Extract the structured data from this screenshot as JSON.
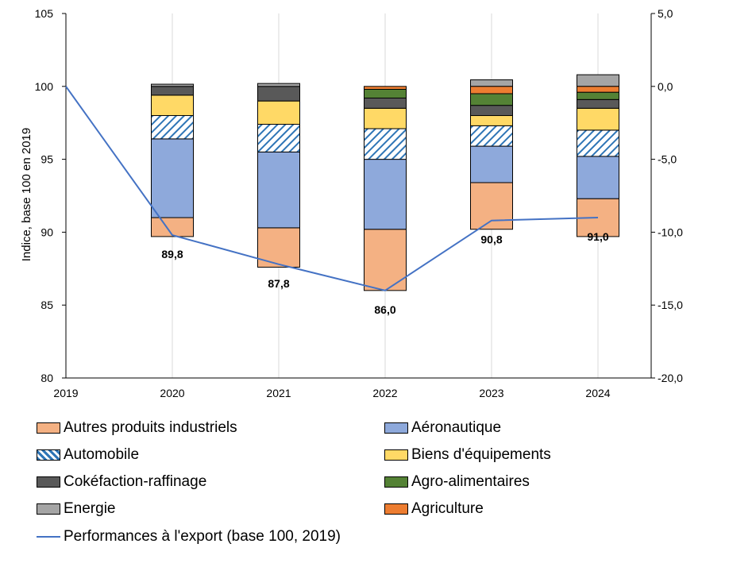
{
  "chart_data": {
    "type": "bar",
    "subtype": "stacked-bar-with-line",
    "categories": [
      "2019",
      "2020",
      "2021",
      "2022",
      "2023",
      "2024"
    ],
    "ylabel": "Indice, base 100 en 2019",
    "ylim": [
      80,
      105
    ],
    "yticks": [
      "80",
      "85",
      "90",
      "95",
      "100",
      "105"
    ],
    "y2lim": [
      -20,
      5
    ],
    "y2ticks": [
      "-20,0",
      "-15,0",
      "-10,0",
      "-5,0",
      "0,0",
      "5,0"
    ],
    "grid": "vertical",
    "series": [
      {
        "name": "Autres produits industriels",
        "color": "#F4B183",
        "pattern": "solid",
        "values": [
          null,
          [
            -10.3,
            -9.0
          ],
          [
            -12.4,
            -9.7
          ],
          [
            -14.0,
            -9.8
          ],
          [
            -9.8,
            -6.6
          ],
          [
            -10.3,
            -7.7
          ]
        ]
      },
      {
        "name": "Aéronautique",
        "color": "#8EA9DB",
        "pattern": "solid",
        "values": [
          null,
          [
            -9.0,
            -3.6
          ],
          [
            -9.7,
            -4.5
          ],
          [
            -9.8,
            -5.0
          ],
          [
            -6.6,
            -4.1
          ],
          [
            -7.7,
            -4.8
          ]
        ]
      },
      {
        "name": "Automobile",
        "color": "#FFFFFF",
        "pattern": "diagonal-blue",
        "values": [
          null,
          [
            -3.6,
            -2.0
          ],
          [
            -4.5,
            -2.6
          ],
          [
            -5.0,
            -2.9
          ],
          [
            -4.1,
            -2.7
          ],
          [
            -4.8,
            -3.0
          ]
        ]
      },
      {
        "name": "Biens d'équipements",
        "color": "#FFD966",
        "pattern": "solid",
        "values": [
          null,
          [
            -2.0,
            -0.6
          ],
          [
            -2.6,
            -1.0
          ],
          [
            -2.9,
            -1.5
          ],
          [
            -2.7,
            -2.0
          ],
          [
            -3.0,
            -1.5
          ]
        ]
      },
      {
        "name": "Cokéfaction-raffinage",
        "color": "#595959",
        "pattern": "solid",
        "values": [
          null,
          [
            -0.6,
            0.0
          ],
          [
            -1.0,
            0.0
          ],
          [
            -1.5,
            -0.8
          ],
          [
            -2.0,
            -1.3
          ],
          [
            -1.5,
            -0.9
          ]
        ]
      },
      {
        "name": "Agro-alimentaires",
        "color": "#548235",
        "pattern": "solid",
        "values": [
          null,
          null,
          null,
          [
            -0.8,
            -0.2
          ],
          [
            -1.3,
            -0.5
          ],
          [
            -0.9,
            -0.4
          ]
        ]
      },
      {
        "name": "Energie",
        "color": "#A5A5A5",
        "pattern": "solid",
        "values": [
          null,
          [
            0.0,
            0.15
          ],
          [
            0.0,
            0.2
          ],
          null,
          [
            0.0,
            0.45
          ],
          [
            0.0,
            0.8
          ]
        ]
      },
      {
        "name": "Agriculture",
        "color": "#ED7D31",
        "pattern": "solid",
        "values": [
          null,
          null,
          null,
          [
            -0.2,
            0.0
          ],
          [
            -0.5,
            0.0
          ],
          [
            -0.4,
            0.0
          ]
        ]
      }
    ],
    "line": {
      "name": "Performances à l'export (base 100, 2019)",
      "color": "#4472C4",
      "values": [
        100,
        89.8,
        87.8,
        86.0,
        90.8,
        91.0
      ]
    },
    "data_labels": [
      {
        "category": "2020",
        "text": "89,8"
      },
      {
        "category": "2021",
        "text": "87,8"
      },
      {
        "category": "2022",
        "text": "86,0"
      },
      {
        "category": "2023",
        "text": "90,8"
      },
      {
        "category": "2024",
        "text": "91,0"
      }
    ]
  }
}
